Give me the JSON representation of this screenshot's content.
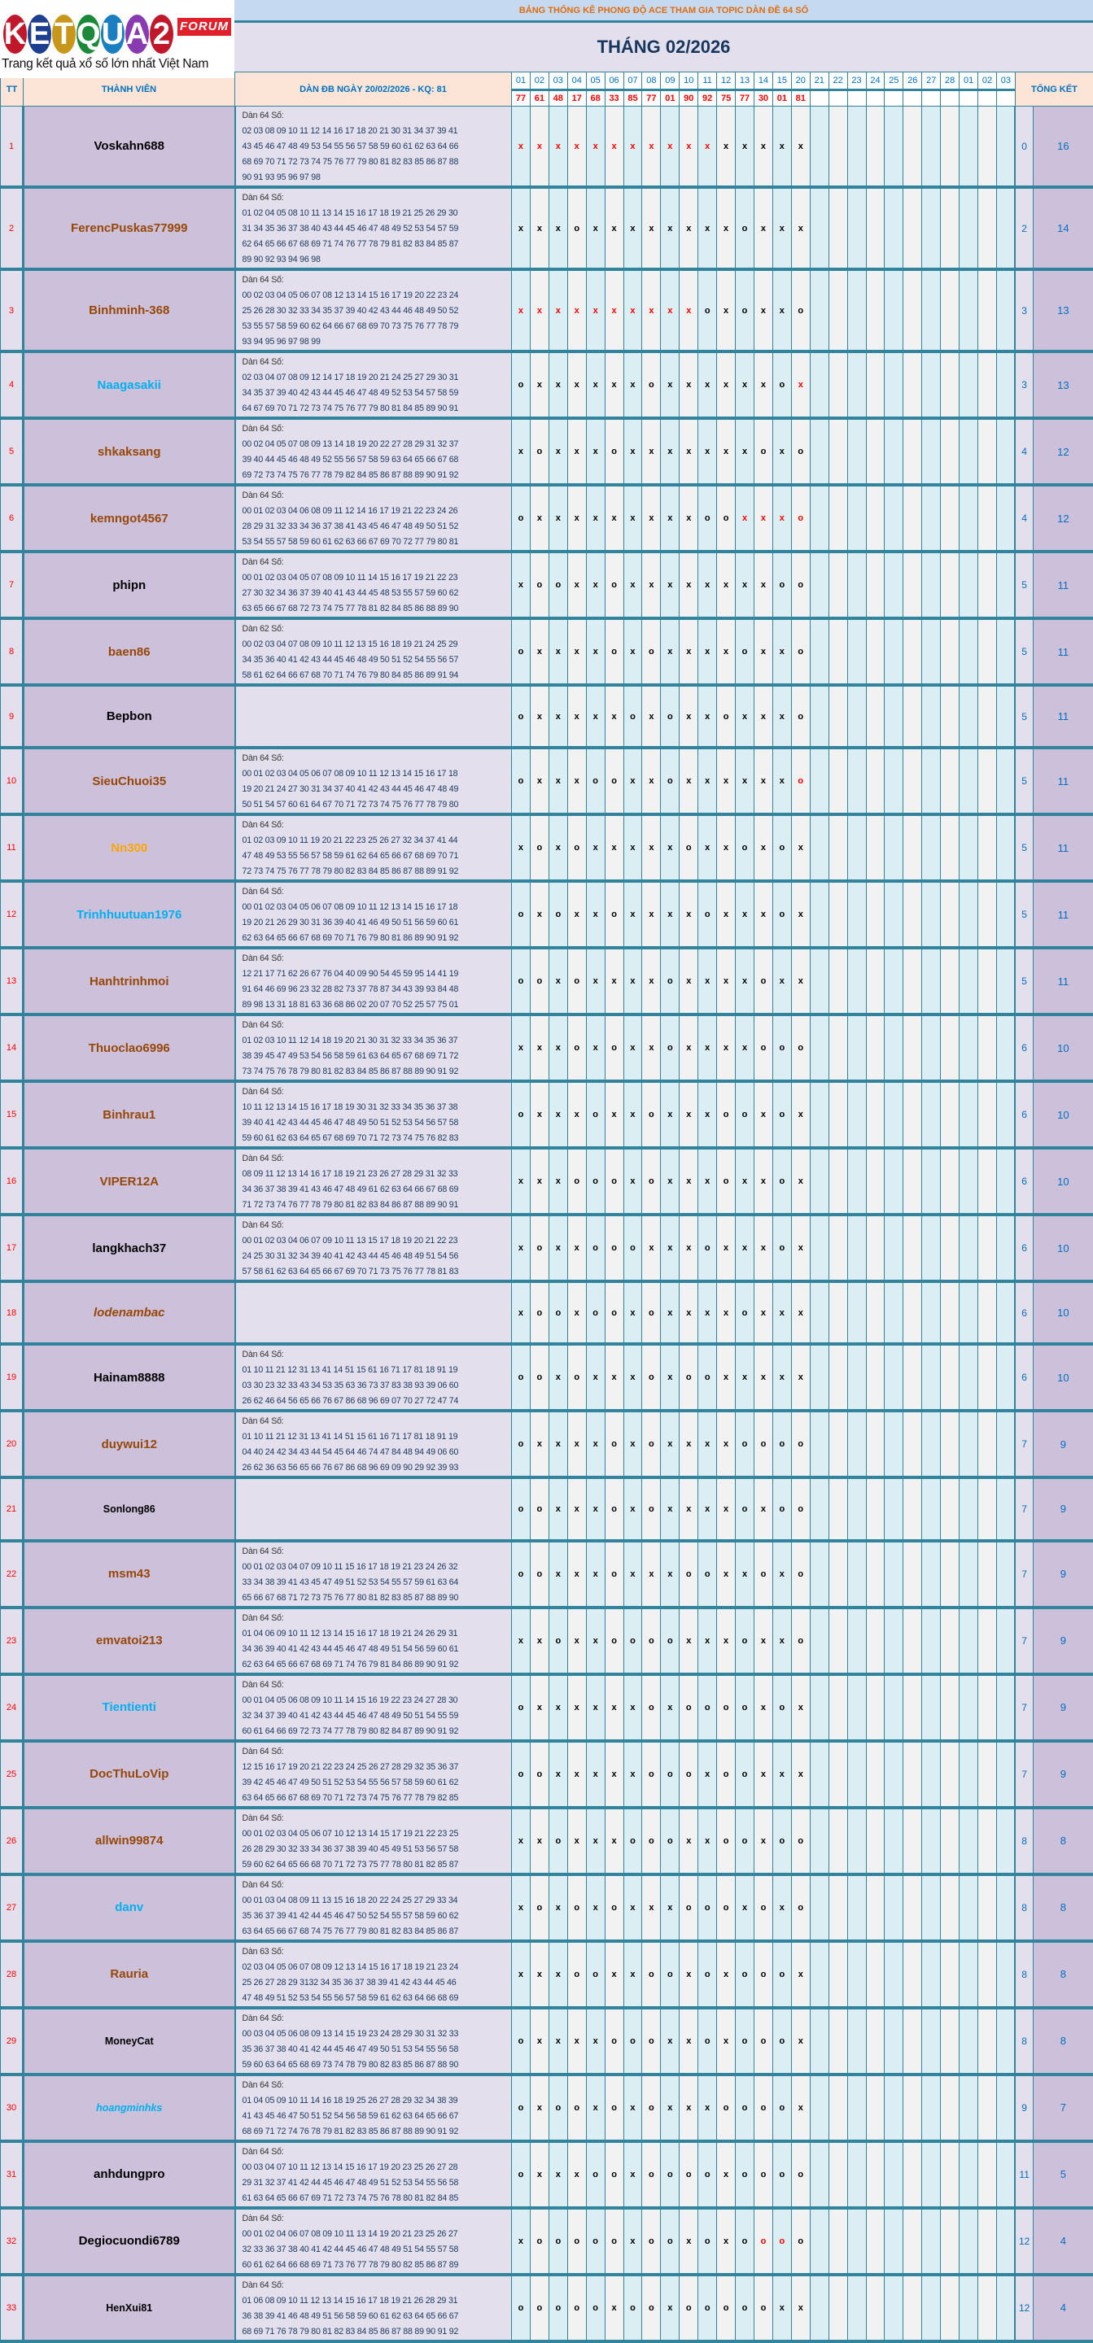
{
  "logo": {
    "text": "KETQUA2",
    "badge": "FORUM",
    "tagline": "Trang kết quả xổ số lớn nhất Việt Nam",
    "ball_colors": [
      "#c0182a",
      "#1e3f8f",
      "#c8961a",
      "#1a8a3a",
      "#1a7fc0",
      "#8a3ab0",
      "#c0182a"
    ]
  },
  "title": "BẢNG THỐNG KÊ PHONG ĐỘ ACE THAM GIA TOPIC DÀN ĐỀ 64 SỐ",
  "month": "THÁNG 02/2026",
  "headers": {
    "tt": "TT",
    "member": "THÀNH VIÊN",
    "dan": "DÀN ĐB NGÀY 20/02/2026 - KQ: 81",
    "total": "TỔNG KẾT"
  },
  "days": [
    "01",
    "02",
    "03",
    "04",
    "05",
    "06",
    "07",
    "08",
    "09",
    "10",
    "11",
    "12",
    "13",
    "14",
    "15",
    "20",
    "21",
    "22",
    "23",
    "24",
    "25",
    "26",
    "27",
    "28",
    "01",
    "02",
    "03"
  ],
  "results": [
    "77",
    "61",
    "48",
    "17",
    "68",
    "33",
    "85",
    "77",
    "01",
    "90",
    "92",
    "75",
    "77",
    "30",
    "01",
    "81"
  ],
  "colors": {
    "accent": "#31849b",
    "name_brown": "#974706",
    "name_cyan": "#00b0f0",
    "name_orange": "#ffa500",
    "name_black": "#000000",
    "red": "#ff0000"
  },
  "rows": [
    {
      "tt": "1",
      "name": "Voskahn688",
      "color": "black",
      "dan": [
        "Dàn 64 Số:",
        "02 03 08 09 10 11 12 14 16 17 18 20 21 30 31 34 37 39 41",
        "43 45 46 47 48 49 53 54 55 56 57 58 59 60 61 62 63 64 66",
        "68 69 70 71 72 73 74 75 76 77 79 80 81 82 83 85 86 87 88",
        "90 91 93 95 96 97 98"
      ],
      "marks": "xxxxxxxxxxxxxxxx",
      "red": [
        0,
        1,
        2,
        3,
        4,
        5,
        6,
        7,
        8,
        9,
        10
      ],
      "o": "0",
      "x": "16"
    },
    {
      "tt": "2",
      "name": "FerencPuskas77999",
      "color": "brown",
      "dan": [
        "Dàn 64 Số:",
        "01 02 04 05 08 10 11 13 14 15 16 17 18 19 21 25 26 29 30",
        "31 34 35 36 37 38 40 43 44 45 46 47 48 49 52 53 54 57 59",
        "62 64 65 66 67 68 69 71 74 76 77 78 79 81 82 83 84 85 87",
        "89 90 92 93 94 96 98"
      ],
      "marks": "xxxoxxxxxxxxoxxx",
      "red": [],
      "o": "2",
      "x": "14"
    },
    {
      "tt": "3",
      "name": "Binhminh-368",
      "color": "brown",
      "dan": [
        "Dàn 64 Số:",
        "00 02 03 04 05 06 07 08 12 13 14 15 16 17 19 20 22 23 24",
        "25 26 28 30 32 33 34 35 37 39 40 42 43 44 46 48 49 50 52",
        "53 55 57 58 59 60 62 64 66 67 68 69 70 73 75 76 77 78 79",
        "93 94 95 96 97 98 99"
      ],
      "marks": "xxxxxxxxxxoxoxxo",
      "red": [
        0,
        1,
        2,
        3,
        4,
        5,
        6,
        7,
        8,
        9
      ],
      "o": "3",
      "x": "13"
    },
    {
      "tt": "4",
      "name": "Naagasakii",
      "color": "cyan",
      "dan": [
        "Dàn 64 Số:",
        "02 03 04 07 08 09 12 14 17 18 19 20 21 24 25 27 29 30 31",
        "34 35 37 39 40 42 43 44 45 46 47 48 49 52 53 54 57 58 59",
        "64 67 69 70 71 72 73 74 75 76 77 79 80 81 84 85 89 90 91"
      ],
      "marks": "oxxxxxxoxxxxxxox",
      "red": [
        15
      ],
      "o": "3",
      "x": "13"
    },
    {
      "tt": "5",
      "name": "shkaksang",
      "color": "brown",
      "dan": [
        "Dàn 64 Số:",
        "00 02 04 05 07 08 09 13 14 18 19 20 22 27 28 29 31 32 37",
        "39 40 44 45 46 48 49 52 55 56 57 58 59 63 64 65 66 67 68",
        "69 72 73 74 75 76 77 78 79 82 84 85 86 87 88 89 90 91 92"
      ],
      "marks": "xoxxxoxxxxxxxoxo",
      "red": [],
      "o": "4",
      "x": "12"
    },
    {
      "tt": "6",
      "name": "kemngot4567",
      "color": "brown",
      "dan": [
        "Dàn 64 Số:",
        "00 01 02 03 04 06 08 09 11 12 14 16 17 19 21 22 23 24 26",
        "28 29 31 32 33 34 36 37 38 41 43 45 46 47 48 49 50 51 52",
        "53 54 55 57 58 59 60 61 62 63 66 67 69 70 72 77 79 80 81"
      ],
      "marks": "oxxxxxxxxxooxxxo",
      "red": [
        12,
        13,
        14,
        15
      ],
      "o": "4",
      "x": "12"
    },
    {
      "tt": "7",
      "name": "phipn",
      "color": "black",
      "dan": [
        "Dàn 64 Số:",
        "00 01 02 03 04 05 07 08 09 10 11 14 15 16 17 19 21 22 23",
        "27 30 32 34 36 37 39 40 41 43 44 45 48 53 55 57 59 60 62",
        "63 65 66 67 68 72 73 74 75 77 78 81 82 84 85 86 88 89 90"
      ],
      "marks": "xooxxoxxxxxxxxoo",
      "red": [],
      "o": "5",
      "x": "11"
    },
    {
      "tt": "8",
      "name": "baen86",
      "color": "brown",
      "dan": [
        "Dàn 62 Số:",
        "00 02 03 04 07 08 09 10 11 12 13 15 16 18 19 21 24 25 29",
        "34 35 36 40 41 42 43 44 45 46 48 49 50 51 52 54 55 56 57",
        "58 61 62 64 66 67 68 70 71 74 76 79 80 84 85 86 89 91 94"
      ],
      "marks": "oxxxxoxoxxxxoxxo",
      "red": [],
      "o": "5",
      "x": "11"
    },
    {
      "tt": "9",
      "name": "Bepbon",
      "color": "black",
      "dan": [],
      "marks": "oxxxxxoxoxxoxxxo",
      "red": [],
      "o": "5",
      "x": "11"
    },
    {
      "tt": "10",
      "name": "SieuChuoi35",
      "color": "brown",
      "dan": [
        "Dàn 64 Số:",
        "00 01 02 03 04 05 06 07 08 09 10 11 12 13 14 15 16 17 18",
        "19 20 21 24 27 30 31 34 37 40 41 42 43 44 45 46 47 48 49",
        "50 51 54 57 60 61 64 67 70 71 72 73 74 75 76 77 78 79 80"
      ],
      "marks": "oxxxooxxoxxxxxxo",
      "red": [
        15
      ],
      "o": "5",
      "x": "11"
    },
    {
      "tt": "11",
      "name": "Nn300",
      "color": "orange",
      "dan": [
        "Dàn 64 Số:",
        "01 02 03 09 10 11 19 20 21 22 23 25 26 27 32 34 37 41 44",
        "47 48 49 53 55 56 57 58 59 61 62 64 65 66 67 68 69 70 71",
        "72 73 74 75 76 77 78 79 80 82 83 84 85 86 87 88 89 91 92"
      ],
      "marks": "xoxoxxxxxoxxoxox",
      "red": [],
      "o": "5",
      "x": "11"
    },
    {
      "tt": "12",
      "name": "Trinhhuutuan1976",
      "color": "cyan",
      "dan": [
        "Dàn 64 Số:",
        "00 01 02 03 04 05 06 07 08 09 10 11 12 13 14 15 16 17 18",
        "19 20 21 26 29 30 31 36 39 40 41 46 49 50 51 56 59 60 61",
        "62 63 64 65 66 67 68 69 70 71 76 79 80 81 86 89 90 91 92"
      ],
      "marks": "oxoxxoxxxxoxxxox",
      "red": [],
      "o": "5",
      "x": "11"
    },
    {
      "tt": "13",
      "name": "Hanhtrinhmoi",
      "color": "brown",
      "dan": [
        "Dàn 64 Số:",
        "12 21 17 71 62 26 67 76 04 40 09 90 54 45 59 95 14 41 19",
        "91 64 46 69 96 23 32 28 82 73 37 78 87 34 43 39 93 84 48",
        "89 98 13 31 18 81 63 36 68 86 02 20 07 70 52 25 57 75 01"
      ],
      "marks": "ooxoxxxxoxxxxoxx",
      "red": [],
      "o": "5",
      "x": "11"
    },
    {
      "tt": "14",
      "name": "Thuoclao6996",
      "color": "brown",
      "dan": [
        "Dàn 64 Số:",
        "01 02 03 10 11 12 14 18 19 20 21 30 31 32 33 34 35 36 37",
        "38 39 45 47 49 53 54 56 58 59 61 63 64 65 67 68 69 71 72",
        "73 74 75 76 78 79 80 81 82 83 84 85 86 87 88 89 90 91 92"
      ],
      "marks": "xxxoxoxxoxxxxooo",
      "red": [],
      "o": "6",
      "x": "10"
    },
    {
      "tt": "15",
      "name": "Binhrau1",
      "color": "brown",
      "dan": [
        "Dàn 64 Số:",
        "10 11 12 13 14 15 16 17 18 19 30 31 32 33 34 35 36 37 38",
        "39 40 41 42 43 44 45 46 47 48 49 50 51 52 53 54 56 57 58",
        "59 60 61 62 63 64 65 67 68 69 70 71 72 73 74 75 76 82 83"
      ],
      "marks": "oxxxoxxoxxxooxox",
      "red": [],
      "o": "6",
      "x": "10"
    },
    {
      "tt": "16",
      "name": "VIPER12A",
      "color": "brown",
      "dan": [
        "Dàn 64 Số:",
        "08 09 11 12 13 14 16 17 18 19 21 23 26 27 28 29 31 32 33",
        "34 36 37 38 39 41 43 46 47 48 49 61 62 63 64 66 67 68 69",
        "71 72 73 74 76 77 78 79 80 81 82 83 84 86 87 88 89 90 91"
      ],
      "marks": "xxxoooxoxxxoxxox",
      "red": [],
      "o": "6",
      "x": "10"
    },
    {
      "tt": "17",
      "name": "langkhach37",
      "color": "black",
      "dan": [
        "Dàn 64 Số:",
        "00 01 02 03 04 06 07 09 10 11 13 15 17 18 19 20 21 22 23",
        "24 25 30 31 32 34 39 40 41 42 43 44 45 46 48 49 51 54 56",
        "57 58 61 62 63 64 65 66 67 69 70 71 73 75 76 77 78 81 83"
      ],
      "marks": "xoxxoooxxxoxxxox",
      "red": [],
      "o": "6",
      "x": "10"
    },
    {
      "tt": "18",
      "name": "lodenambac",
      "color": "brown",
      "italic": true,
      "dan": [],
      "marks": "xooxooxoxxxxoxxx",
      "red": [],
      "o": "6",
      "x": "10"
    },
    {
      "tt": "19",
      "name": "Hainam8888",
      "color": "black",
      "dan": [
        "Dàn 64 Số:",
        "01 10 11 21 12 31 13 41 14 51 15 61 16 71 17 81 18 91 19",
        "03 30 23 32 33 43 34 53 35 63 36 73 37 83 38 93 39 06 60",
        "26 62 46 64 56 65 66 76 67 86 68 96 69 07 70 27 72 47 74"
      ],
      "marks": "ooxoxxxoxooxxxxx",
      "red": [],
      "o": "6",
      "x": "10"
    },
    {
      "tt": "20",
      "name": "duywui12",
      "color": "brown",
      "dan": [
        "Dàn 64 Số:",
        "01 10 11 21 12 31 13 41 14 51 15 61 16 71 17 81 18 91 19",
        "04 40 24 42 34 43 44 54 45 64 46 74 47 84 48 94 49 06 60",
        "26 62 36 63 56 65 66 76 67 86 68 96 69 09 90 29 92 39 93"
      ],
      "marks": "oxxxxoxoxxxxoooo",
      "red": [],
      "o": "7",
      "x": "9"
    },
    {
      "tt": "21",
      "name": "Sonlong86",
      "color": "black",
      "small": true,
      "dan": [],
      "marks": "ooxxxoxoxxxxoxoo",
      "red": [],
      "o": "7",
      "x": "9"
    },
    {
      "tt": "22",
      "name": "msm43",
      "color": "brown",
      "dan": [
        "Dàn 64 Số:",
        "00 01 02 03 04 07 09 10 11 15 16 17 18 19 21 23 24 26 32",
        "33 34 38 39 41 43 45 47 49 51 52 53 54 55 57 59 61 63 64",
        "65 66 67 68 71 72 73 75 76 77 80 81 82 83 85 87 88 89 90"
      ],
      "marks": "ooxxxoxxxooxxoxo",
      "red": [],
      "o": "7",
      "x": "9"
    },
    {
      "tt": "23",
      "name": "emvatoi213",
      "color": "brown",
      "dan": [
        "Dàn 64 Số:",
        "01 04 06 09 10 11 12 13 14 15 16 17 18 19 21 24 26 29 31",
        "34 36 39 40 41 42 43 44 45 46 47 48 49 51 54 56 59 60 61",
        "62 63 64 65 66 67 68 69 71 74 76 79 81 84 86 89 90 91 92"
      ],
      "marks": "xxoxxooooxxxoxxo",
      "red": [],
      "o": "7",
      "x": "9"
    },
    {
      "tt": "24",
      "name": "Tientienti",
      "color": "cyan",
      "dan": [
        "Dàn 64 Số:",
        "00 01 04 05 06 08 09 10 11 14 15 16 19 22 23 24 27 28 30",
        "32 34 37 39 40 41 42 43 44 45 46 47 48 49 50 51 54 55 59",
        "60 61 64 66 69 72 73 74 77 78 79 80 82 84 87 89 90 91 92"
      ],
      "marks": "oxxxxxxoxooooxox",
      "red": [],
      "o": "7",
      "x": "9"
    },
    {
      "tt": "25",
      "name": "DocThuLoVip",
      "color": "brown",
      "dan": [
        "Dàn 64 Số:",
        "12 15 16 17 19 20 21 22 23 24 25 26 27 28 29 32 35 36 37",
        "39 42 45 46 47 49 50 51 52 53 54 55 56 57 58 59 60 61 62",
        "63 64 65 66 67 68 69 70 71 72 73 74 75 76 77 78 79 82 85"
      ],
      "marks": "ooxxxxxoooxooxxx",
      "red": [],
      "o": "7",
      "x": "9"
    },
    {
      "tt": "26",
      "name": "allwin99874",
      "color": "brown",
      "dan": [
        "Dàn 64 Số:",
        "00 01 02 03 04 05 06 07 10 12 13 14 15 17 19 21 22 23 25",
        "26 28 29 30 32 33 34 36 37 38 39 40 45 49 51 53 56 57 58",
        "59 60 62 64 65 66 68 70 71 72 73 75 77 78 80 81 82 85 87"
      ],
      "marks": "xxoxxxoooxxooxoo",
      "red": [],
      "o": "8",
      "x": "8"
    },
    {
      "tt": "27",
      "name": "danv",
      "color": "cyan",
      "dan": [
        "Dàn 64 Số:",
        "00 01 03 04 08 09 11 13 15 16 18 20 22 24 25 27 29 33 34",
        "35 36 37 39 41 42 44 45 46 47 50 52 54 55 57 58 59 60 62",
        "63 64 65 66 67 68 74 75 76 77 79 80 81 82 83 84 85 86 87"
      ],
      "marks": "xoxoxoxxxoooxoxo",
      "red": [],
      "o": "8",
      "x": "8"
    },
    {
      "tt": "28",
      "name": "Rauria",
      "color": "brown",
      "dan": [
        "Dàn 63 Số:",
        "02 03 04 05 06 07 08 09 12 13 14 15 16 17 18 19 21 23 24",
        "25 26 27 28 29 3132 34 35 36 37 38 39 41 42 43 44 45 46",
        "47 48 49 51 52 53 54 55 56 57 58 59 61 62 63 64 66 68 69"
      ],
      "marks": "xxxooxxooxoxooox",
      "red": [],
      "o": "8",
      "x": "8"
    },
    {
      "tt": "29",
      "name": "MoneyCat",
      "color": "black",
      "small": true,
      "dan": [
        "Dàn 64 Số:",
        "00 03 04 05 06 08 09 13 14 15 19 23 24 28 29 30 31 32 33",
        "35 36 37 38 40 41 42 44 45 46 47 49 50 51 53 54 55 56 58",
        "59 60 63 64 65 68 69 73 74 78 79 80 82 83 85 86 87 88 90"
      ],
      "marks": "oxxxxoooxxoxooox",
      "red": [],
      "o": "8",
      "x": "8"
    },
    {
      "tt": "30",
      "name": "hoangminhks",
      "color": "cyan",
      "italic": true,
      "small": true,
      "dan": [
        "Dàn 64 Số:",
        "01 04 05 09 10 11 14 16 18 19 25 26 27 28 29 32 34 38 39",
        "41 43 45 46 47 50 51 52 54 56 58 59 61 62 63 64 65 66 67",
        "68 69 71 72 74 76 78 79 81 82 83 85 86 87 88 89 90 91 92"
      ],
      "marks": "oxooxoxoxxxoooox",
      "red": [],
      "o": "9",
      "x": "7"
    },
    {
      "tt": "31",
      "name": "anhdungpro",
      "color": "black",
      "dan": [
        "Dàn 64 Số:",
        "00 03 04 07 10 11 12 13 14 15 16 17 19 20 23 25 26 27 28",
        "29 31 32 37 41 42 44 45 46 47 48 49 51 52 53 54 55 56 58",
        "61 63 64 65 66 67 69 71 72 73 74 75 76 78 80 81 82 84 85"
      ],
      "marks": "oxxxooxooooxoooo",
      "red": [],
      "o": "11",
      "x": "5"
    },
    {
      "tt": "32",
      "name": "Degiocuondi6789",
      "color": "black",
      "dan": [
        "Dàn 64 Số:",
        "00 01 02 04 06 07 08 09 10 11 13 14 19 20 21 23 25 26 27",
        "32 33 36 37 38 40 41 42 44 45 46 47 48 49 51 54 55 57 58",
        "60 61 62 64 66 68 69 71 73 76 77 78 79 80 82 85 86 87 89"
      ],
      "marks": "xoooooxooxoxoooo",
      "red": [
        13,
        14
      ],
      "o": "12",
      "x": "4"
    },
    {
      "tt": "33",
      "name": "HenXui81",
      "color": "black",
      "small": true,
      "dan": [
        "Dàn 64 Số:",
        "01 06 08 09 10 11 12 13 14 15 16 17 18 19 21 26 28 29 31",
        "36 38 39 41 46 48 49 51 56 58 59 60 61 62 63 64 65 66 67",
        "68 69 71 76 78 79 80 81 82 83 84 85 86 87 88 89 90 91 92"
      ],
      "marks": "oooooxooxoooooxx",
      "red": [],
      "o": "12",
      "x": "4"
    }
  ]
}
